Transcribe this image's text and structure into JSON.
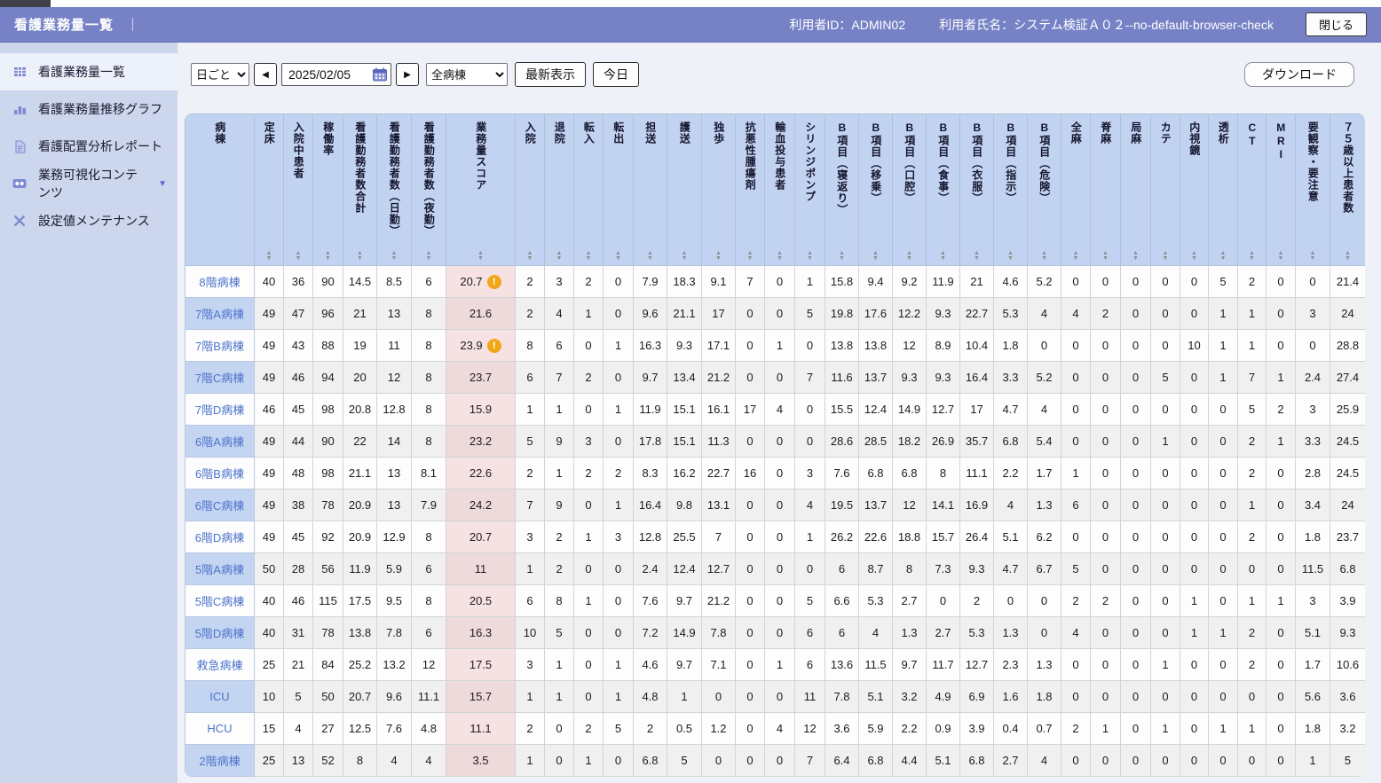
{
  "header": {
    "title": "看護業務量一覧",
    "separator": "｜",
    "user_id": "利用者ID：ADMIN02",
    "user_name": "利用者氏名：システム検証Ａ０２--no-default-browser-check",
    "close_button": "閉じる"
  },
  "sidebar": {
    "items": [
      {
        "label": "看護業務量一覧",
        "icon": "grid-table-icon",
        "selected": true
      },
      {
        "label": "看護業務量推移グラフ",
        "icon": "bar-chart-icon",
        "selected": false
      },
      {
        "label": "看護配置分析レポート",
        "icon": "report-document-icon",
        "selected": false
      },
      {
        "label": "業務可視化コンテンツ",
        "icon": "content-badge-icon",
        "selected": false,
        "caret": "▼"
      },
      {
        "label": "設定値メンテナンス",
        "icon": "tools-icon",
        "selected": false
      }
    ]
  },
  "toolbar": {
    "period_select_value": "日ごと",
    "prev_button": "◀",
    "date_value": "2025/02/05",
    "next_button": "▶",
    "ward_select_value": "全病棟",
    "refresh_button": "最新表示",
    "today_button": "今日",
    "download_button": "ダウンロード"
  },
  "colors": {
    "titlebar_bg": "#7682c5",
    "sidebar_bg": "#ccd6ed",
    "table_header_bg": "#c1d3f0",
    "ward_cell_bg": "#c9d9f5",
    "score_column_bg": "#f6e2e2",
    "warning_icon_bg": "#f2a71b"
  },
  "table": {
    "score_column_index": 6,
    "columns": [
      "病棟",
      "定床",
      "入院中患者",
      "稼働率",
      "看護勤務者数合計",
      "看護勤務者数（日勤）",
      "看護勤務者数（夜勤）",
      "業務量スコア",
      "入院",
      "退院",
      "転入",
      "転出",
      "担送",
      "護送",
      "独歩",
      "抗悪性腫瘍剤",
      "輸血投与患者",
      "シリンジポンプ",
      "B項目（寝返り）",
      "B項目（移乗）",
      "B項目（口腔）",
      "B項目（食事）",
      "B項目（衣服）",
      "B項目（指示）",
      "B項目（危険）",
      "全麻",
      "脊麻",
      "局麻",
      "カテ",
      "内視鏡",
      "透析",
      "CT",
      "MRI",
      "要観察・要注意",
      "７５歳以上患者数"
    ],
    "rows": [
      {
        "ward": "8階病棟",
        "warning": true,
        "values": [
          "40",
          "36",
          "90",
          "14.5",
          "8.5",
          "6",
          "20.7",
          "2",
          "3",
          "2",
          "0",
          "7.9",
          "18.3",
          "9.1",
          "7",
          "0",
          "1",
          "15.8",
          "9.4",
          "9.2",
          "11.9",
          "21",
          "4.6",
          "5.2",
          "0",
          "0",
          "0",
          "0",
          "0",
          "5",
          "2",
          "0",
          "0",
          "21.4"
        ]
      },
      {
        "ward": "7階A病棟",
        "warning": false,
        "values": [
          "49",
          "47",
          "96",
          "21",
          "13",
          "8",
          "21.6",
          "2",
          "4",
          "1",
          "0",
          "9.6",
          "21.1",
          "17",
          "0",
          "0",
          "5",
          "19.8",
          "17.6",
          "12.2",
          "9.3",
          "22.7",
          "5.3",
          "4",
          "4",
          "2",
          "0",
          "0",
          "0",
          "1",
          "1",
          "0",
          "3",
          "24"
        ]
      },
      {
        "ward": "7階B病棟",
        "warning": true,
        "values": [
          "49",
          "43",
          "88",
          "19",
          "11",
          "8",
          "23.9",
          "8",
          "6",
          "0",
          "1",
          "16.3",
          "9.3",
          "17.1",
          "0",
          "1",
          "0",
          "13.8",
          "13.8",
          "12",
          "8.9",
          "10.4",
          "1.8",
          "0",
          "0",
          "0",
          "0",
          "0",
          "10",
          "1",
          "1",
          "0",
          "0",
          "28.8"
        ]
      },
      {
        "ward": "7階C病棟",
        "warning": false,
        "values": [
          "49",
          "46",
          "94",
          "20",
          "12",
          "8",
          "23.7",
          "6",
          "7",
          "2",
          "0",
          "9.7",
          "13.4",
          "21.2",
          "0",
          "0",
          "7",
          "11.6",
          "13.7",
          "9.3",
          "9.3",
          "16.4",
          "3.3",
          "5.2",
          "0",
          "0",
          "0",
          "5",
          "0",
          "1",
          "7",
          "1",
          "2.4",
          "27.4"
        ]
      },
      {
        "ward": "7階D病棟",
        "warning": false,
        "values": [
          "46",
          "45",
          "98",
          "20.8",
          "12.8",
          "8",
          "15.9",
          "1",
          "1",
          "0",
          "1",
          "11.9",
          "15.1",
          "16.1",
          "17",
          "4",
          "0",
          "15.5",
          "12.4",
          "14.9",
          "12.7",
          "17",
          "4.7",
          "4",
          "0",
          "0",
          "0",
          "0",
          "0",
          "0",
          "5",
          "2",
          "3",
          "25.9"
        ]
      },
      {
        "ward": "6階A病棟",
        "warning": false,
        "values": [
          "49",
          "44",
          "90",
          "22",
          "14",
          "8",
          "23.2",
          "5",
          "9",
          "3",
          "0",
          "17.8",
          "15.1",
          "11.3",
          "0",
          "0",
          "0",
          "28.6",
          "28.5",
          "18.2",
          "26.9",
          "35.7",
          "6.8",
          "5.4",
          "0",
          "0",
          "0",
          "1",
          "0",
          "0",
          "2",
          "1",
          "3.3",
          "24.5"
        ]
      },
      {
        "ward": "6階B病棟",
        "warning": false,
        "values": [
          "49",
          "48",
          "98",
          "21.1",
          "13",
          "8.1",
          "22.6",
          "2",
          "1",
          "2",
          "2",
          "8.3",
          "16.2",
          "22.7",
          "16",
          "0",
          "3",
          "7.6",
          "6.8",
          "6.8",
          "8",
          "11.1",
          "2.2",
          "1.7",
          "1",
          "0",
          "0",
          "0",
          "0",
          "0",
          "2",
          "0",
          "2.8",
          "24.5"
        ]
      },
      {
        "ward": "6階C病棟",
        "warning": false,
        "values": [
          "49",
          "38",
          "78",
          "20.9",
          "13",
          "7.9",
          "24.2",
          "7",
          "9",
          "0",
          "1",
          "16.4",
          "9.8",
          "13.1",
          "0",
          "0",
          "4",
          "19.5",
          "13.7",
          "12",
          "14.1",
          "16.9",
          "4",
          "1.3",
          "6",
          "0",
          "0",
          "0",
          "0",
          "0",
          "1",
          "0",
          "3.4",
          "24"
        ]
      },
      {
        "ward": "6階D病棟",
        "warning": false,
        "values": [
          "49",
          "45",
          "92",
          "20.9",
          "12.9",
          "8",
          "20.7",
          "3",
          "2",
          "1",
          "3",
          "12.8",
          "25.5",
          "7",
          "0",
          "0",
          "1",
          "26.2",
          "22.6",
          "18.8",
          "15.7",
          "26.4",
          "5.1",
          "6.2",
          "0",
          "0",
          "0",
          "0",
          "0",
          "0",
          "2",
          "0",
          "1.8",
          "23.7"
        ]
      },
      {
        "ward": "5階A病棟",
        "warning": false,
        "values": [
          "50",
          "28",
          "56",
          "11.9",
          "5.9",
          "6",
          "11",
          "1",
          "2",
          "0",
          "0",
          "2.4",
          "12.4",
          "12.7",
          "0",
          "0",
          "0",
          "6",
          "8.7",
          "8",
          "7.3",
          "9.3",
          "4.7",
          "6.7",
          "5",
          "0",
          "0",
          "0",
          "0",
          "0",
          "0",
          "0",
          "11.5",
          "6.8"
        ]
      },
      {
        "ward": "5階C病棟",
        "warning": false,
        "values": [
          "40",
          "46",
          "115",
          "17.5",
          "9.5",
          "8",
          "20.5",
          "6",
          "8",
          "1",
          "0",
          "7.6",
          "9.7",
          "21.2",
          "0",
          "0",
          "5",
          "6.6",
          "5.3",
          "2.7",
          "0",
          "2",
          "0",
          "0",
          "2",
          "2",
          "0",
          "0",
          "1",
          "0",
          "1",
          "1",
          "3",
          "3.9"
        ]
      },
      {
        "ward": "5階D病棟",
        "warning": false,
        "values": [
          "40",
          "31",
          "78",
          "13.8",
          "7.8",
          "6",
          "16.3",
          "10",
          "5",
          "0",
          "0",
          "7.2",
          "14.9",
          "7.8",
          "0",
          "0",
          "6",
          "6",
          "4",
          "1.3",
          "2.7",
          "5.3",
          "1.3",
          "0",
          "4",
          "0",
          "0",
          "0",
          "1",
          "1",
          "2",
          "0",
          "5.1",
          "9.3"
        ]
      },
      {
        "ward": "救急病棟",
        "warning": false,
        "values": [
          "25",
          "21",
          "84",
          "25.2",
          "13.2",
          "12",
          "17.5",
          "3",
          "1",
          "0",
          "1",
          "4.6",
          "9.7",
          "7.1",
          "0",
          "1",
          "6",
          "13.6",
          "11.5",
          "9.7",
          "11.7",
          "12.7",
          "2.3",
          "1.3",
          "0",
          "0",
          "0",
          "1",
          "0",
          "0",
          "2",
          "0",
          "1.7",
          "10.6"
        ]
      },
      {
        "ward": "ICU",
        "warning": false,
        "values": [
          "10",
          "5",
          "50",
          "20.7",
          "9.6",
          "11.1",
          "15.7",
          "1",
          "1",
          "0",
          "1",
          "4.8",
          "1",
          "0",
          "0",
          "0",
          "11",
          "7.8",
          "5.1",
          "3.2",
          "4.9",
          "6.9",
          "1.6",
          "1.8",
          "0",
          "0",
          "0",
          "0",
          "0",
          "0",
          "0",
          "0",
          "5.6",
          "3.6"
        ]
      },
      {
        "ward": "HCU",
        "warning": false,
        "values": [
          "15",
          "4",
          "27",
          "12.5",
          "7.6",
          "4.8",
          "11.1",
          "2",
          "0",
          "2",
          "5",
          "2",
          "0.5",
          "1.2",
          "0",
          "4",
          "12",
          "3.6",
          "5.9",
          "2.2",
          "0.9",
          "3.9",
          "0.4",
          "0.7",
          "2",
          "1",
          "0",
          "1",
          "0",
          "1",
          "1",
          "0",
          "1.8",
          "3.2"
        ]
      },
      {
        "ward": "2階病棟",
        "warning": false,
        "values": [
          "25",
          "13",
          "52",
          "8",
          "4",
          "4",
          "3.5",
          "1",
          "0",
          "1",
          "0",
          "6.8",
          "5",
          "0",
          "0",
          "0",
          "7",
          "6.4",
          "6.8",
          "4.4",
          "5.1",
          "6.8",
          "2.7",
          "4",
          "0",
          "0",
          "0",
          "0",
          "0",
          "0",
          "0",
          "0",
          "1",
          "5"
        ]
      }
    ]
  }
}
